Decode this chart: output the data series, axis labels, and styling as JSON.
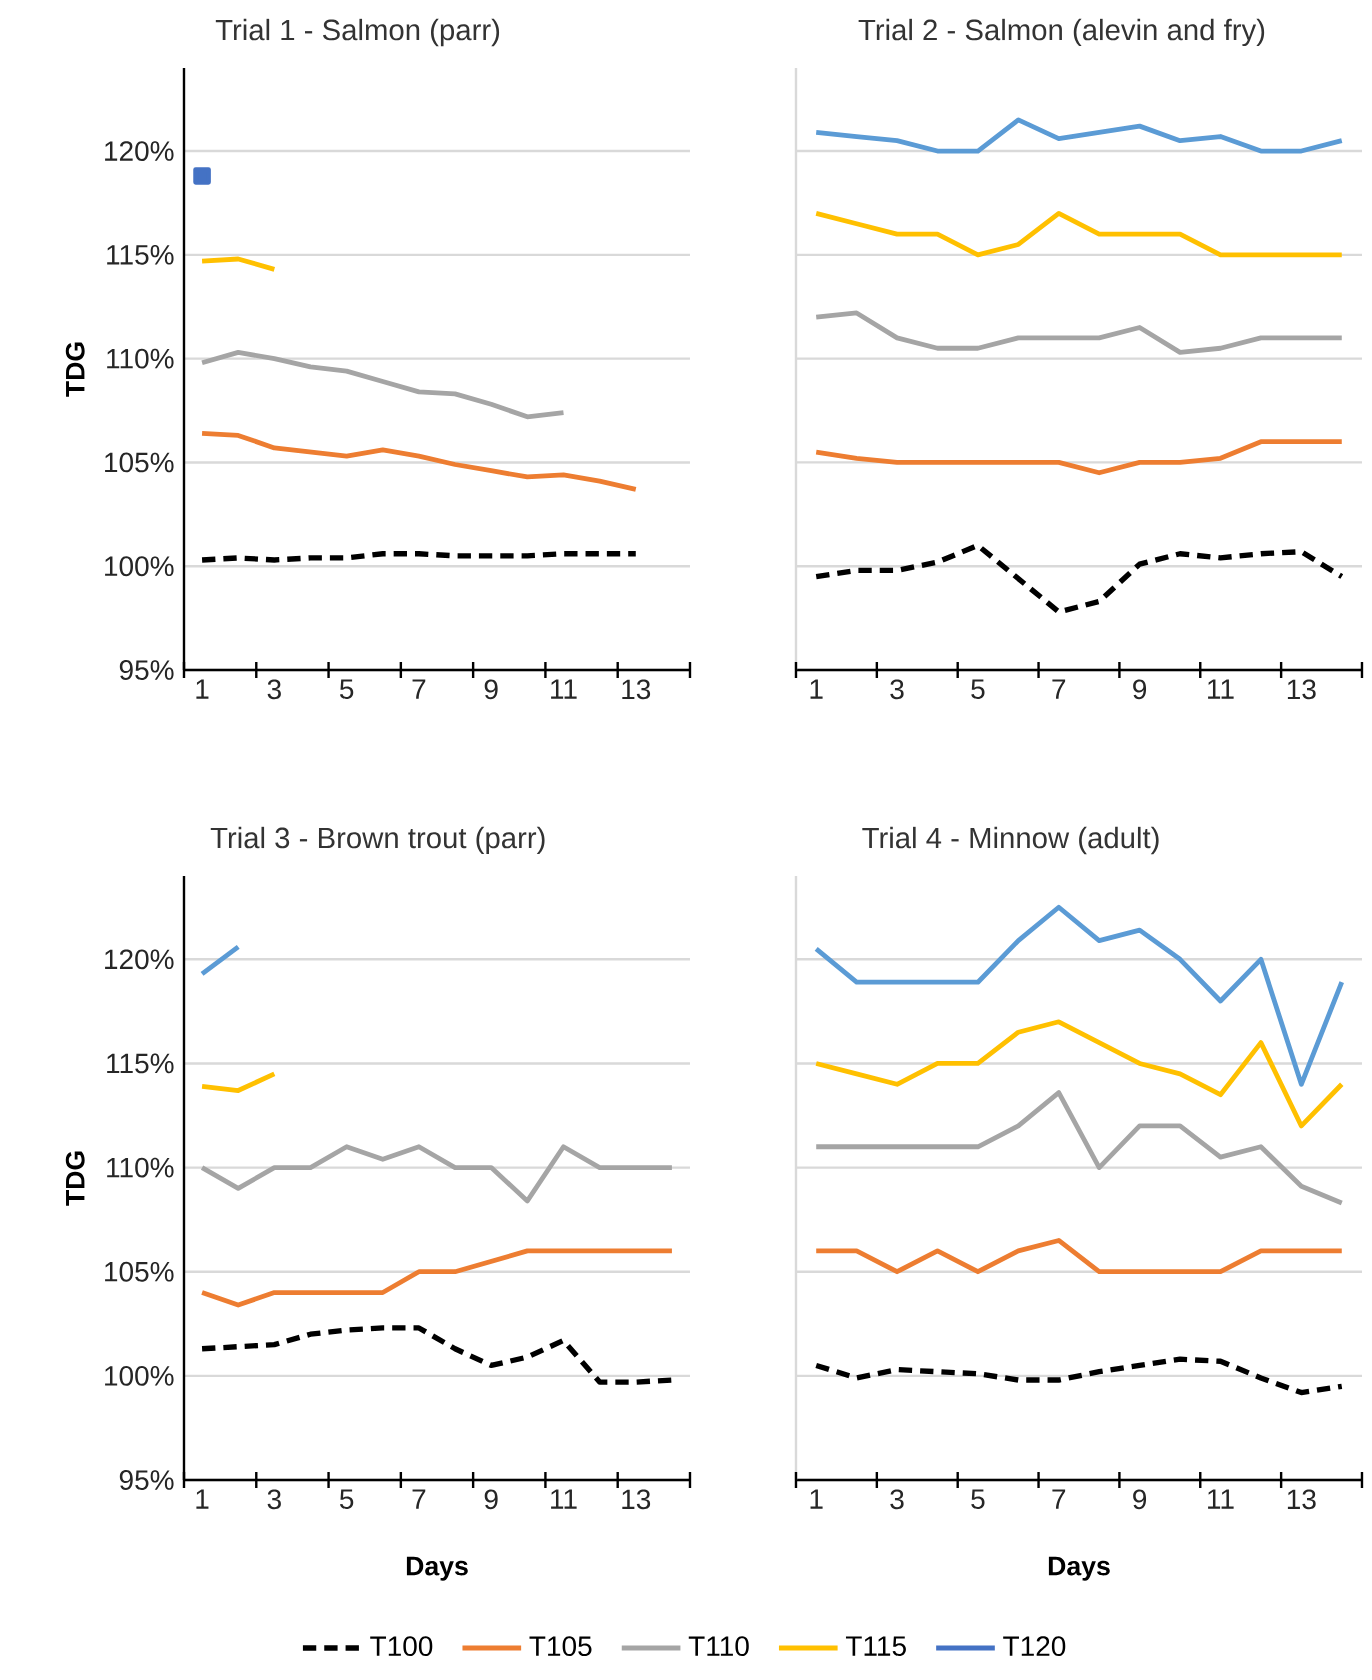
{
  "chart_data": [
    {
      "type": "line",
      "title": "Trial 1 - Salmon (parr)",
      "ylabel": "TDG",
      "x": [
        1,
        2,
        3,
        4,
        5,
        6,
        7,
        8,
        9,
        10,
        11,
        12,
        13
      ],
      "xlim": [
        0.5,
        14.5
      ],
      "xticks": [
        {
          "value": 0.5,
          "label": null
        },
        1,
        {
          "value": 2.5,
          "label": null
        },
        3,
        {
          "value": 4.5,
          "label": null
        },
        5,
        {
          "value": 6.5,
          "label": null
        },
        7,
        {
          "value": 8.5,
          "label": null
        },
        9,
        {
          "value": 10.5,
          "label": null
        },
        11,
        {
          "value": 12.5,
          "label": null
        },
        13,
        {
          "value": 14.5,
          "label": null
        }
      ],
      "ylim": [
        95,
        124
      ],
      "yticks": [
        {
          "value": 95,
          "label": "95%"
        },
        {
          "value": 100,
          "label": "100%"
        },
        {
          "value": 105,
          "label": "105%"
        },
        {
          "value": 110,
          "label": "110%"
        },
        {
          "value": 115,
          "label": "115%"
        },
        {
          "value": 120,
          "label": "120%"
        }
      ],
      "grid": "y",
      "legend": "bottom",
      "series": [
        {
          "name": "T100",
          "color": "#000000",
          "line_style": "dashed",
          "values": [
            100.3,
            100.4,
            100.3,
            100.4,
            100.4,
            100.6,
            100.6,
            100.5,
            100.5,
            100.5,
            100.6,
            100.6,
            100.6
          ]
        },
        {
          "name": "T105",
          "color": "#ed7d31",
          "values": [
            106.4,
            106.3,
            105.7,
            105.5,
            105.3,
            105.6,
            105.3,
            104.9,
            104.6,
            104.3,
            104.4,
            104.1,
            103.7
          ]
        },
        {
          "name": "T110",
          "color": "#a5a5a5",
          "values": [
            109.8,
            110.3,
            110,
            109.6,
            109.4,
            108.9,
            108.4,
            108.3,
            107.8,
            107.2,
            107.4,
            null,
            null
          ]
        },
        {
          "name": "T115",
          "color": "#ffc000",
          "values": [
            114.7,
            114.8,
            114.3,
            null,
            null,
            null,
            null,
            null,
            null,
            null,
            null,
            null,
            null
          ]
        },
        {
          "name": "T120",
          "type": "scatter",
          "marker": "square",
          "color": "#4472c4",
          "values": [
            118.8,
            null,
            null,
            null,
            null,
            null,
            null,
            null,
            null,
            null,
            null,
            null,
            null
          ]
        }
      ]
    },
    {
      "type": "line",
      "title": "Trial 2 - Salmon (alevin and fry)",
      "x": [
        1,
        2,
        3,
        4,
        5,
        6,
        7,
        8,
        9,
        10,
        11,
        12,
        13,
        14
      ],
      "xlim": [
        0.5,
        14.5
      ],
      "ylim": [
        95,
        124
      ],
      "xticks": [
        {
          "value": 0.5,
          "label": null
        },
        1,
        {
          "value": 2.5,
          "label": null
        },
        3,
        {
          "value": 4.5,
          "label": null
        },
        5,
        {
          "value": 6.5,
          "label": null
        },
        7,
        {
          "value": 8.5,
          "label": null
        },
        9,
        {
          "value": 10.5,
          "label": null
        },
        11,
        {
          "value": 12.5,
          "label": null
        },
        13,
        {
          "value": 14.5,
          "label": null
        }
      ],
      "yticks": [
        95,
        100,
        105,
        110,
        115,
        120
      ],
      "tick_labels": "x",
      "grid": "y",
      "series": [
        {
          "color": "#000000",
          "line_style": "dashed",
          "values": [
            99.5,
            99.8,
            99.8,
            100.2,
            101,
            99.4,
            97.8,
            98.3,
            100.1,
            100.6,
            100.4,
            100.6,
            100.7,
            99.5
          ]
        },
        {
          "color": "#ed7d31",
          "values": [
            105.5,
            105.2,
            105,
            105,
            105,
            105,
            105,
            104.5,
            105,
            105,
            105.2,
            106,
            106,
            106
          ]
        },
        {
          "color": "#a5a5a5",
          "values": [
            112,
            112.2,
            111,
            110.5,
            110.5,
            111,
            111,
            111,
            111.5,
            110.3,
            110.5,
            111,
            111,
            111
          ]
        },
        {
          "color": "#ffc000",
          "values": [
            117,
            116.5,
            116,
            116,
            115,
            115.5,
            117,
            116,
            116,
            116,
            115,
            115,
            115,
            115
          ]
        },
        {
          "color": "#5b9bd5",
          "values": [
            120.9,
            120.7,
            120.5,
            120,
            120,
            121.5,
            120.6,
            120.9,
            121.2,
            120.5,
            120.7,
            120,
            120,
            120.5
          ]
        }
      ]
    },
    {
      "type": "line",
      "title": "Trial 3 - Brown trout (parr)",
      "xlabel": "Days",
      "ylabel": "TDG",
      "x": [
        1,
        2,
        3,
        4,
        5,
        6,
        7,
        8,
        9,
        10,
        11,
        12,
        13,
        14
      ],
      "xlim": [
        0.5,
        14.5
      ],
      "xticks": [
        {
          "value": 0.5,
          "label": null
        },
        1,
        {
          "value": 2.5,
          "label": null
        },
        3,
        {
          "value": 4.5,
          "label": null
        },
        5,
        {
          "value": 6.5,
          "label": null
        },
        7,
        {
          "value": 8.5,
          "label": null
        },
        9,
        {
          "value": 10.5,
          "label": null
        },
        11,
        {
          "value": 12.5,
          "label": null
        },
        13,
        {
          "value": 14.5,
          "label": null
        }
      ],
      "ylim": [
        95,
        124
      ],
      "yticks": [
        {
          "value": 95,
          "label": "95%"
        },
        {
          "value": 100,
          "label": "100%"
        },
        {
          "value": 105,
          "label": "105%"
        },
        {
          "value": 110,
          "label": "110%"
        },
        {
          "value": 115,
          "label": "115%"
        },
        {
          "value": 120,
          "label": "120%"
        }
      ],
      "grid": "y",
      "series": [
        {
          "color": "#000000",
          "line_style": "dashed",
          "values": [
            101.3,
            101.4,
            101.5,
            102,
            102.2,
            102.3,
            102.3,
            101.3,
            100.5,
            100.9,
            101.7,
            99.7,
            99.7,
            99.8
          ]
        },
        {
          "color": "#ed7d31",
          "values": [
            104,
            103.4,
            104,
            104,
            104,
            104,
            105,
            105,
            105.5,
            106,
            106,
            106,
            106,
            106
          ]
        },
        {
          "color": "#a5a5a5",
          "values": [
            110,
            109,
            110,
            110,
            111,
            110.4,
            111,
            110,
            110,
            108.4,
            111,
            110,
            110,
            110
          ]
        },
        {
          "color": "#ffc000",
          "values": [
            113.9,
            113.7,
            114.5,
            null,
            null,
            null,
            null,
            null,
            null,
            null,
            null,
            null,
            null,
            null
          ]
        },
        {
          "color": "#5b9bd5",
          "values": [
            119.3,
            120.6,
            null,
            null,
            null,
            null,
            null,
            null,
            null,
            null,
            null,
            null,
            null,
            null
          ]
        }
      ]
    },
    {
      "type": "line",
      "title": "Trial 4 - Minnow (adult)",
      "xlabel": "Days",
      "x": [
        1,
        2,
        3,
        4,
        5,
        6,
        7,
        8,
        9,
        10,
        11,
        12,
        13,
        14
      ],
      "xlim": [
        0.5,
        14.5
      ],
      "ylim": [
        95,
        124
      ],
      "xticks": [
        {
          "value": 0.5,
          "label": null
        },
        1,
        {
          "value": 2.5,
          "label": null
        },
        3,
        {
          "value": 4.5,
          "label": null
        },
        5,
        {
          "value": 6.5,
          "label": null
        },
        7,
        {
          "value": 8.5,
          "label": null
        },
        9,
        {
          "value": 10.5,
          "label": null
        },
        11,
        {
          "value": 12.5,
          "label": null
        },
        13,
        {
          "value": 14.5,
          "label": null
        }
      ],
      "yticks": [
        95,
        100,
        105,
        110,
        115,
        120
      ],
      "tick_labels": "x",
      "grid": "y",
      "series": [
        {
          "color": "#000000",
          "line_style": "dashed",
          "values": [
            100.5,
            99.9,
            100.3,
            100.2,
            100.1,
            99.8,
            99.8,
            100.2,
            100.5,
            100.8,
            100.7,
            99.9,
            99.2,
            99.5
          ]
        },
        {
          "color": "#ed7d31",
          "values": [
            106,
            106,
            105,
            106,
            105,
            106,
            106.5,
            105,
            105,
            105,
            105,
            106,
            106,
            106
          ]
        },
        {
          "color": "#a5a5a5",
          "values": [
            111,
            111,
            111,
            111,
            111,
            112,
            113.6,
            110,
            112,
            112,
            110.5,
            111,
            109.1,
            108.3
          ]
        },
        {
          "color": "#ffc000",
          "values": [
            115,
            114.5,
            114,
            115,
            115,
            116.5,
            117,
            116,
            115,
            114.5,
            113.5,
            116,
            112,
            114
          ]
        },
        {
          "color": "#5b9bd5",
          "values": [
            120.5,
            118.9,
            118.9,
            118.9,
            118.9,
            120.9,
            122.5,
            120.9,
            121.4,
            120,
            118,
            120,
            114,
            118.9
          ]
        }
      ]
    }
  ]
}
